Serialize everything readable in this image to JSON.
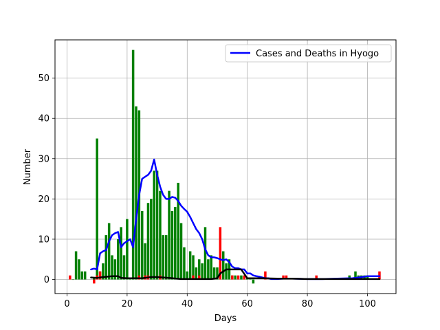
{
  "chart_data": {
    "type": "bar",
    "title": "",
    "xlabel": "Days",
    "ylabel": "Number",
    "xlim": [
      -4,
      109.5
    ],
    "ylim": [
      -3.5,
      59.5
    ],
    "xticks": [
      0,
      20,
      40,
      60,
      80,
      100
    ],
    "yticks": [
      0,
      10,
      20,
      30,
      40,
      50
    ],
    "grid": true,
    "legend": {
      "placement": "top-right",
      "entries": [
        "Cases and Deaths in Hyogo"
      ]
    },
    "series": [
      {
        "kind": "bar",
        "color": "#008000",
        "x": [
          2,
          3,
          4,
          5,
          6,
          9,
          10,
          11,
          12,
          13,
          14,
          15,
          16,
          17,
          18,
          19,
          20,
          21,
          22,
          23,
          24,
          25,
          26,
          27,
          28,
          29,
          30,
          31,
          32,
          33,
          34,
          35,
          36,
          37,
          38,
          39,
          40,
          41,
          42,
          43,
          44,
          45,
          46,
          47,
          48,
          49,
          50,
          52,
          53,
          54,
          55,
          56,
          58,
          59,
          60,
          61,
          62,
          71,
          94,
          96,
          97,
          98,
          99,
          100
        ],
        "values": [
          0,
          7,
          5,
          2,
          2,
          0.3,
          35,
          2,
          4,
          11,
          14,
          6,
          5,
          10,
          13,
          6,
          15,
          0,
          57,
          43,
          42,
          17,
          9,
          19,
          20,
          27,
          27,
          22,
          11,
          11,
          22,
          17,
          18,
          24,
          14,
          8,
          2,
          7,
          6,
          3,
          5,
          4,
          13,
          5,
          6,
          3,
          3,
          7,
          4,
          5,
          1,
          1,
          1,
          1,
          0.5,
          0.5,
          -1,
          0.3,
          1,
          2,
          1,
          1,
          1,
          1
        ]
      },
      {
        "kind": "bar",
        "color": "#ff0000",
        "x": [
          1,
          9,
          10,
          11,
          24,
          26,
          27,
          31,
          42,
          44,
          51,
          55,
          57,
          59,
          66,
          72,
          73,
          83,
          104
        ],
        "values": [
          1,
          -1,
          1,
          2,
          1,
          1,
          1,
          1,
          1,
          1,
          13,
          1,
          1,
          1,
          2,
          1,
          1,
          1,
          2
        ]
      },
      {
        "kind": "line",
        "name": "Cases and Deaths in Hyogo",
        "color": "#0000ff",
        "x": [
          8,
          9,
          10,
          11,
          12,
          13,
          14,
          15,
          16,
          17,
          18,
          19,
          20,
          21,
          22,
          23,
          24,
          25,
          26,
          27,
          28,
          29,
          30,
          31,
          32,
          33,
          34,
          35,
          36,
          37,
          38,
          39,
          40,
          41,
          42,
          43,
          44,
          45,
          46,
          47,
          48,
          49,
          50,
          51,
          52,
          53,
          54,
          55,
          56,
          57,
          58,
          59,
          60,
          61,
          62,
          63,
          64,
          65,
          66,
          67,
          68,
          69,
          70,
          72,
          75,
          80,
          85,
          90,
          95,
          97,
          100,
          104
        ],
        "values": [
          2.5,
          2.7,
          2.5,
          6.5,
          7,
          7.3,
          9.5,
          11,
          11.5,
          11.8,
          8,
          9,
          9.5,
          10,
          8,
          15,
          21,
          25,
          25.5,
          26,
          27,
          29.8,
          26,
          23,
          21,
          20,
          20,
          20.5,
          20.3,
          19.5,
          18.3,
          17.5,
          16.8,
          15.5,
          14,
          12.5,
          11.5,
          10,
          7.5,
          6,
          5.5,
          5.5,
          5.3,
          5,
          4.8,
          5,
          4.3,
          3.2,
          2.8,
          2.8,
          2.5,
          2.5,
          1.5,
          1.5,
          1,
          0.8,
          0.7,
          0.5,
          0.3,
          0.3,
          0.1,
          0.1,
          0.1,
          0.2,
          0.2,
          0.1,
          0.1,
          0.2,
          0.3,
          0.5,
          0.8,
          0.8
        ]
      },
      {
        "kind": "line",
        "color": "#000000",
        "x": [
          8,
          10,
          12,
          15,
          17,
          18,
          20,
          25,
          28,
          30,
          34,
          38,
          40,
          45,
          48,
          50,
          51,
          53,
          55,
          58,
          60,
          65,
          70,
          75,
          80,
          85,
          90,
          95,
          100,
          104
        ],
        "values": [
          0.5,
          0.4,
          0.6,
          0.8,
          0.8,
          0.4,
          0.3,
          0.3,
          0.6,
          0.6,
          0.4,
          0.1,
          0.1,
          0.1,
          0.1,
          0.3,
          1.5,
          2.5,
          2.5,
          2.5,
          0.3,
          0.3,
          0.2,
          0.2,
          0.1,
          0.1,
          0.1,
          0.1,
          0.1,
          0.1
        ]
      }
    ]
  }
}
